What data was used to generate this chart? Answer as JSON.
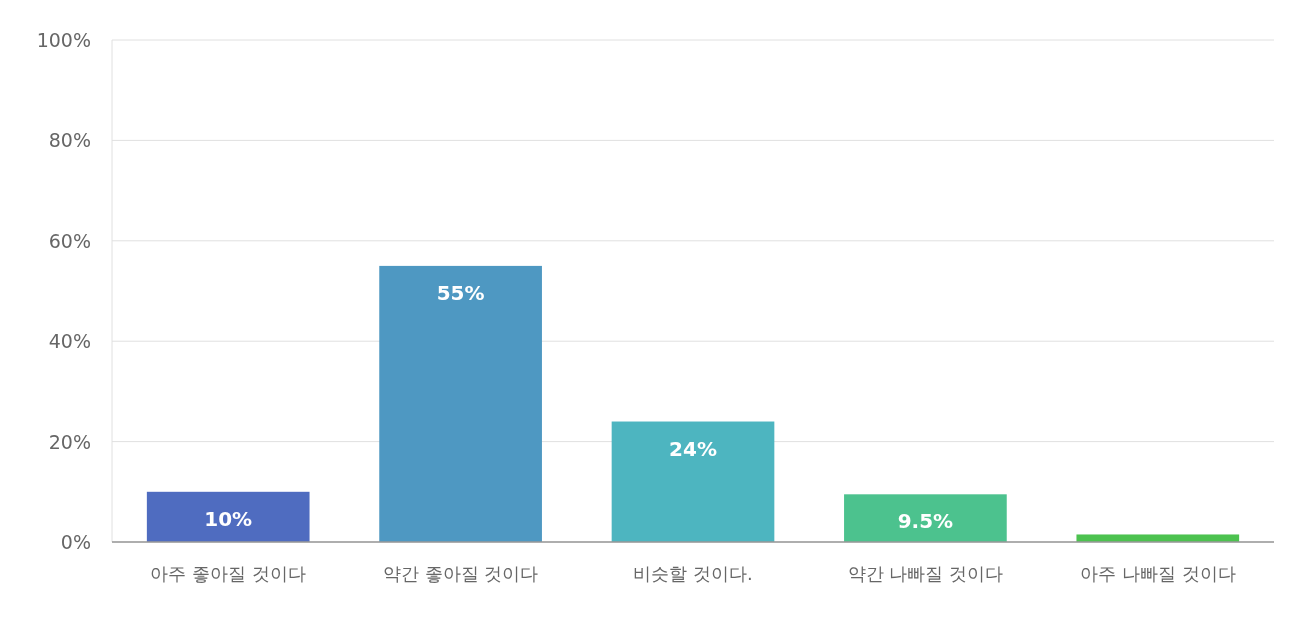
{
  "chart_data": {
    "type": "bar",
    "categories": [
      "아주 좋아질 것이다",
      "약간 좋아질 것이다",
      "비슷할 것이다.",
      "약간 나빠질 것이다",
      "아주 나빠질 것이다"
    ],
    "values": [
      10,
      55,
      24,
      9.5,
      1.5
    ],
    "colors": [
      "#4f6cc0",
      "#4e98c2",
      "#4db5c0",
      "#4cc28e",
      "#4cc24f"
    ],
    "value_labels": [
      "10%",
      "55%",
      "24%",
      "9.5%",
      null
    ],
    "ylim": [
      0,
      100
    ],
    "yticks": [
      {
        "value": 0,
        "label": "0%"
      },
      {
        "value": 20,
        "label": "20%"
      },
      {
        "value": 40,
        "label": "40%"
      },
      {
        "value": 60,
        "label": "60%"
      },
      {
        "value": 80,
        "label": "80%"
      },
      {
        "value": 100,
        "label": "100%"
      }
    ],
    "grid": "y"
  }
}
